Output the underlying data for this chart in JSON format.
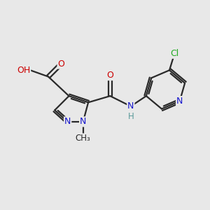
{
  "bg_color": "#e8e8e8",
  "bond_color": "#2a2a2a",
  "bond_width": 1.6,
  "colors": {
    "N": "#1515cc",
    "O": "#cc0000",
    "Cl": "#22aa22",
    "C": "#2a2a2a",
    "NH_H": "#5a9a9a"
  },
  "xlim": [
    -0.5,
    7.5
  ],
  "ylim": [
    0.5,
    5.0
  ]
}
